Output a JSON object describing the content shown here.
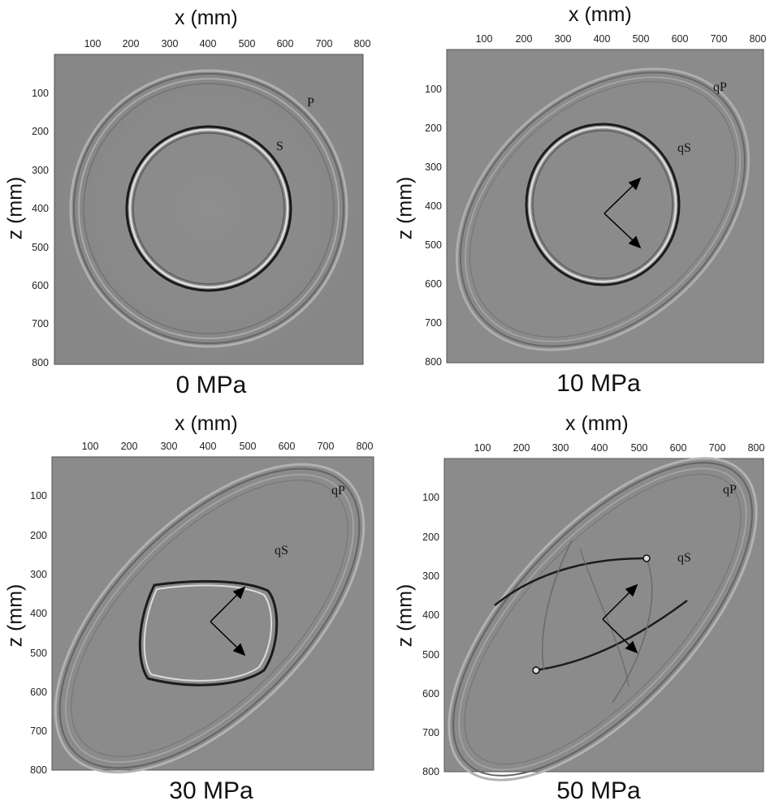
{
  "figure": {
    "x_axis_label": "x (mm)",
    "z_axis_label": "z (mm)",
    "x_ticks": [
      "100",
      "200",
      "300",
      "400",
      "500",
      "600",
      "700",
      "800"
    ],
    "z_ticks": [
      "100",
      "200",
      "300",
      "400",
      "500",
      "600",
      "700",
      "800"
    ],
    "background_color": "#8c8c8c",
    "panels": [
      {
        "caption": "0 MPa",
        "wave_p_label": "P",
        "wave_s_label": "S",
        "stress_arrows": false
      },
      {
        "caption": "10 MPa",
        "wave_p_label": "qP",
        "wave_s_label": "qS",
        "stress_arrows": true
      },
      {
        "caption": "30 MPa",
        "wave_p_label": "qP",
        "wave_s_label": "qS",
        "stress_arrows": true
      },
      {
        "caption": "50 MPa",
        "wave_p_label": "qP",
        "wave_s_label": "qS",
        "stress_arrows": true
      }
    ]
  }
}
